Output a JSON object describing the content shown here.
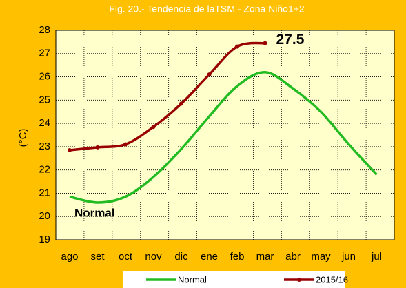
{
  "chart_data": {
    "type": "line",
    "title": "Fig. 20.- Tendencia de laTSM - Zona Niño1+2",
    "y_label": "(°C)",
    "categories": [
      "ago",
      "set",
      "oct",
      "nov",
      "dic",
      "ene",
      "feb",
      "mar",
      "abr",
      "may",
      "jun",
      "jul"
    ],
    "series": [
      {
        "name": "Normal",
        "color": "#22bb22",
        "values": [
          20.85,
          20.6,
          20.85,
          21.7,
          22.9,
          24.3,
          25.6,
          26.2,
          25.5,
          24.5,
          23.1,
          21.8
        ]
      },
      {
        "name": "2015/16",
        "color": "#990000",
        "values": [
          22.85,
          22.97,
          23.1,
          23.85,
          24.85,
          26.1,
          27.3,
          27.45,
          null,
          null,
          null,
          null
        ]
      }
    ],
    "annotations": [
      "27.5",
      "Normal"
    ],
    "ylim": [
      19,
      28
    ],
    "yticks": [
      19,
      20,
      21,
      22,
      23,
      24,
      25,
      26,
      27,
      28
    ],
    "grid": true,
    "legend": "bottom"
  }
}
